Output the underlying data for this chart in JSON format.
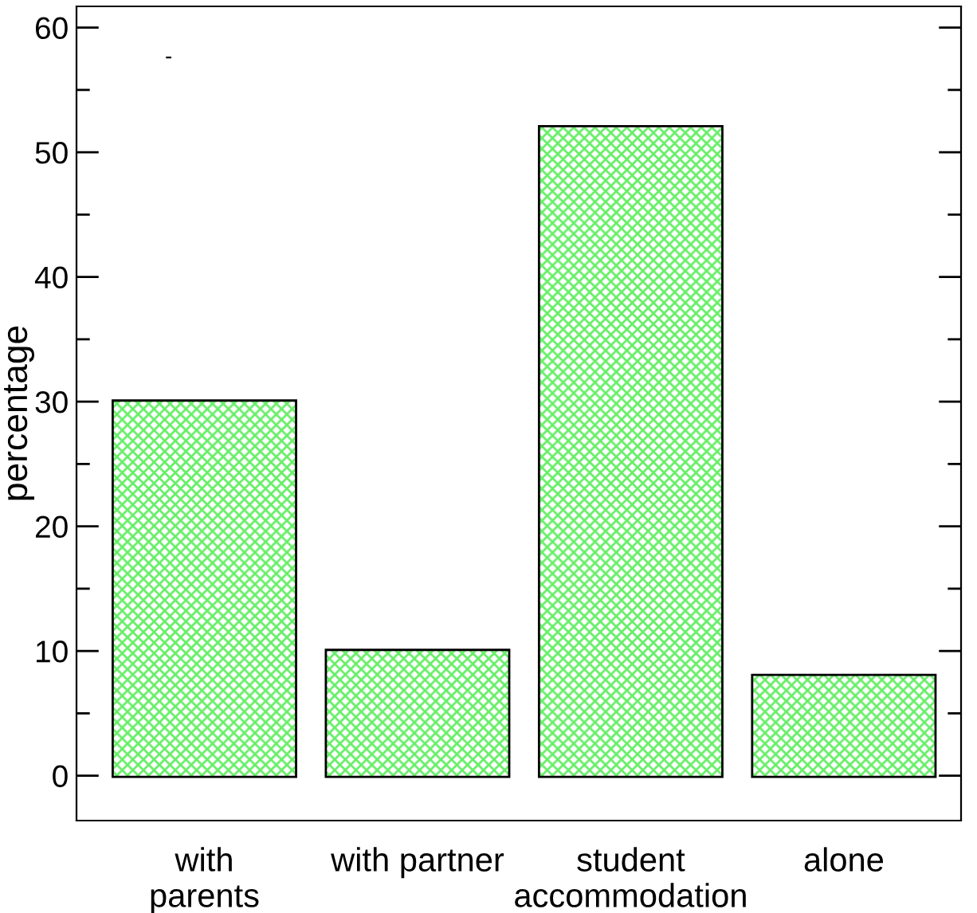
{
  "chart_data": {
    "type": "bar",
    "categories": [
      "with\nparents",
      "with partner",
      "student\naccommodation",
      "alone"
    ],
    "values": [
      30,
      10,
      52,
      8
    ],
    "color": "#66ee66",
    "ylabel": "percentage",
    "ylim": [
      -3.6,
      61.7
    ],
    "yticks": [
      0,
      10,
      20,
      30,
      40,
      50,
      60
    ],
    "annotations": [
      "-"
    ],
    "grid": false
  }
}
